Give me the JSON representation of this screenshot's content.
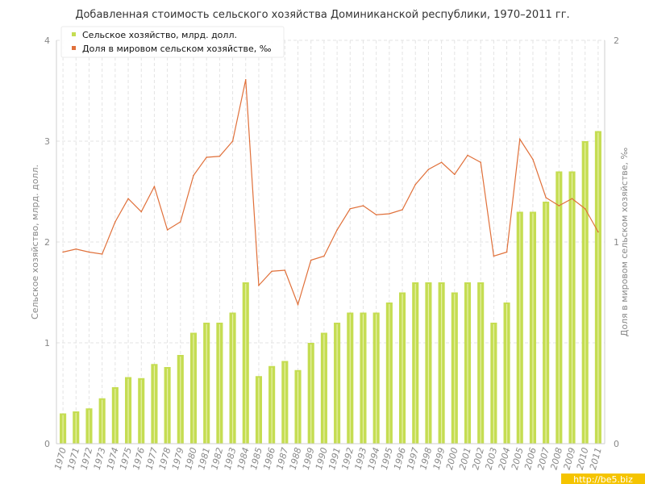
{
  "chart_data": {
    "type": "bar",
    "title": "Добавленная стоимость сельского хозяйства Доминиканской республики, 1970–2011 гг.",
    "ylabel_left": "Сельское хозяйство, млрд. долл.",
    "ylabel_right": "Доля в мировом сельском хозяйстве, ‰",
    "ylim_left": [
      0,
      4
    ],
    "ylim_right": [
      0,
      2
    ],
    "yticks_left": [
      "0",
      "1",
      "2",
      "3",
      "4"
    ],
    "yticks_right": [
      "0",
      "1",
      "2"
    ],
    "grid": true,
    "legend_position": "top-left",
    "categories": [
      "1970",
      "1971",
      "1972",
      "1973",
      "1974",
      "1975",
      "1976",
      "1977",
      "1978",
      "1979",
      "1980",
      "1981",
      "1982",
      "1983",
      "1984",
      "1985",
      "1986",
      "1987",
      "1988",
      "1989",
      "1990",
      "1991",
      "1992",
      "1993",
      "1994",
      "1995",
      "1996",
      "1997",
      "1998",
      "1999",
      "2000",
      "2001",
      "2002",
      "2003",
      "2004",
      "2005",
      "2006",
      "2007",
      "2008",
      "2009",
      "2010",
      "2011"
    ],
    "series": [
      {
        "name": "Сельское хозяйство, млрд. долл.",
        "type": "bar",
        "axis": "left",
        "color": "#c5dd52",
        "values": [
          0.3,
          0.32,
          0.35,
          0.45,
          0.56,
          0.66,
          0.65,
          0.79,
          0.76,
          0.88,
          1.1,
          1.2,
          1.2,
          1.3,
          1.6,
          0.67,
          0.77,
          0.82,
          0.73,
          1.0,
          1.1,
          1.2,
          1.3,
          1.3,
          1.3,
          1.4,
          1.5,
          1.6,
          1.6,
          1.6,
          1.5,
          1.6,
          1.6,
          1.2,
          1.4,
          2.3,
          2.3,
          2.4,
          2.7,
          2.7,
          3.0,
          3.1
        ]
      },
      {
        "name": "Доля в мировом сельском хозяйстве, ‰",
        "type": "line",
        "axis": "right",
        "color": "#e0703a",
        "values": [
          0.95,
          0.965,
          0.95,
          0.94,
          1.1,
          1.215,
          1.15,
          1.275,
          1.06,
          1.1,
          1.33,
          1.42,
          1.425,
          1.5,
          1.805,
          0.785,
          0.855,
          0.86,
          0.69,
          0.91,
          0.93,
          1.06,
          1.165,
          1.18,
          1.135,
          1.14,
          1.16,
          1.285,
          1.36,
          1.395,
          1.335,
          1.43,
          1.395,
          0.93,
          0.95,
          1.51,
          1.41,
          1.22,
          1.18,
          1.215,
          1.165,
          1.05
        ]
      }
    ]
  },
  "watermark": "http://be5.biz"
}
